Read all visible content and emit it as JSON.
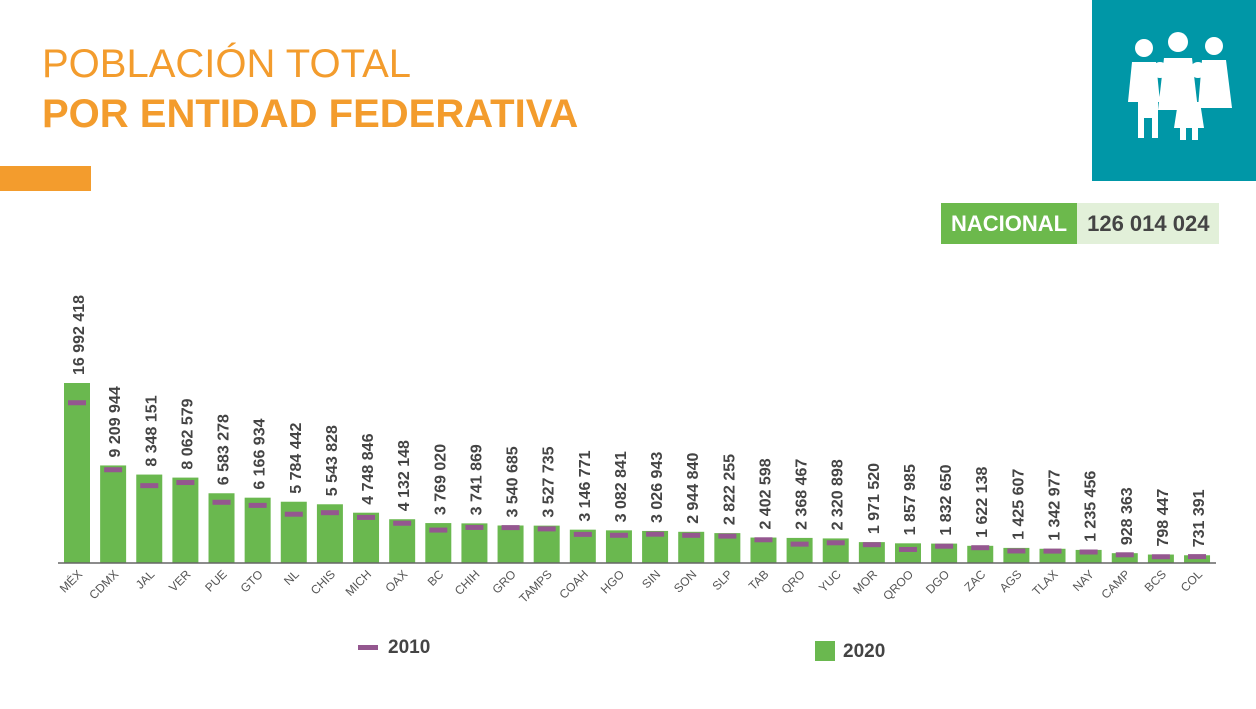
{
  "title_line1": "POBLACIÓN TOTAL",
  "title_line2": "POR ENTIDAD FEDERATIVA",
  "nacional": {
    "label": "NACIONAL",
    "value": "126 014 024"
  },
  "colors": {
    "accent": "#f39c2d",
    "bar_2020": "#6ab84f",
    "marker_2010": "#94578f",
    "icon_bg": "#0097a7"
  },
  "icon": "family-icon",
  "chart_data": {
    "type": "bar",
    "categories": [
      "MÉX",
      "CDMX",
      "JAL",
      "VER",
      "PUE",
      "GTO",
      "NL",
      "CHIS",
      "MICH",
      "OAX",
      "BC",
      "CHIH",
      "GRO",
      "TAMPS",
      "COAH",
      "HGO",
      "SIN",
      "SON",
      "SLP",
      "TAB",
      "QRO",
      "YUC",
      "MOR",
      "QROO",
      "DGO",
      "ZAC",
      "AGS",
      "TLAX",
      "NAY",
      "CAMP",
      "BCS",
      "COL"
    ],
    "series": [
      {
        "name": "2020",
        "values": [
          16992418,
          9209944,
          8348151,
          8062579,
          6583278,
          6166934,
          5784442,
          5543828,
          4748846,
          4132148,
          3769020,
          3741869,
          3540685,
          3527735,
          3146771,
          3082841,
          3026943,
          2944840,
          2822255,
          2402598,
          2368467,
          2320898,
          1971520,
          1857985,
          1832650,
          1622138,
          1425607,
          1342977,
          1235456,
          928363,
          798447,
          731391
        ],
        "labels": [
          "16 992 418",
          "9 209 944",
          "8 348 151",
          "8 062 579",
          "6 583 278",
          "6 166 934",
          "5 784 442",
          "5 543 828",
          "4 748 846",
          "4 132 148",
          "3 769 020",
          "3 741 869",
          "3 540 685",
          "3 527 735",
          "3 146 771",
          "3 082 841",
          "3 026 943",
          "2 944 840",
          "2 822 255",
          "2 402 598",
          "2 368 467",
          "2 320 898",
          "1 971 520",
          "1 857 985",
          "1 832 650",
          "1 622 138",
          "1 425 607",
          "1 342 977",
          "1 235 456",
          "928 363",
          "798 447",
          "731 391"
        ]
      },
      {
        "name": "2010",
        "values": [
          15175862,
          8851080,
          7350682,
          7643194,
          5779829,
          5486372,
          4653458,
          4796580,
          4351037,
          3801962,
          3155070,
          3406465,
          3388768,
          3268554,
          2748391,
          2665018,
          2767761,
          2662480,
          2585518,
          2238603,
          1827937,
          1955577,
          1777227,
          1325578,
          1632934,
          1490668,
          1184996,
          1169936,
          1084979,
          822441,
          637026,
          650555
        ]
      }
    ],
    "legend": [
      "2010",
      "2020"
    ],
    "ylim": [
      0,
      17000000
    ]
  }
}
